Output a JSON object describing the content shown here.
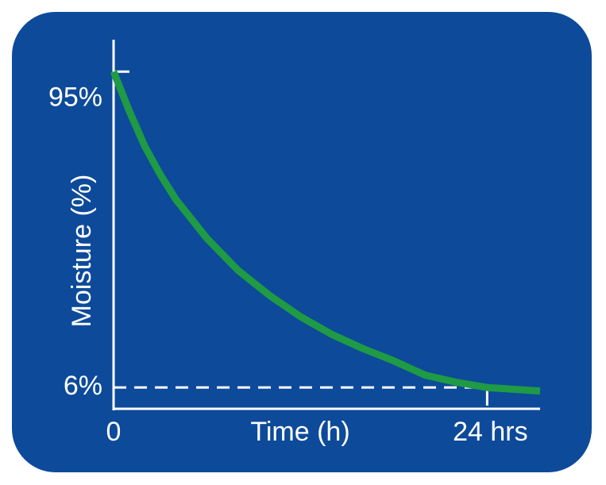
{
  "chart_data": {
    "type": "line",
    "x_label": "Time (h)",
    "y_label": "Moisture (%)",
    "xlim": [
      0,
      27.4
    ],
    "ylim": [
      0,
      104
    ],
    "xticks": [
      0,
      {
        "value": 24,
        "label": "24 hrs"
      }
    ],
    "yticks": [
      {
        "value": 6,
        "label": "6%"
      },
      {
        "value": 95,
        "label": "95%"
      }
    ],
    "background": "#0d4a9a",
    "series": [
      {
        "color": "#1f9a45",
        "x": [
          0,
          1,
          2,
          3,
          4,
          6,
          8,
          10,
          12,
          14,
          16,
          18,
          20,
          22,
          24,
          27.4
        ],
        "values": [
          95,
          84,
          74,
          66,
          59,
          48,
          39,
          32,
          26,
          21,
          17,
          13.5,
          9.5,
          7.5,
          6,
          5
        ]
      }
    ]
  }
}
